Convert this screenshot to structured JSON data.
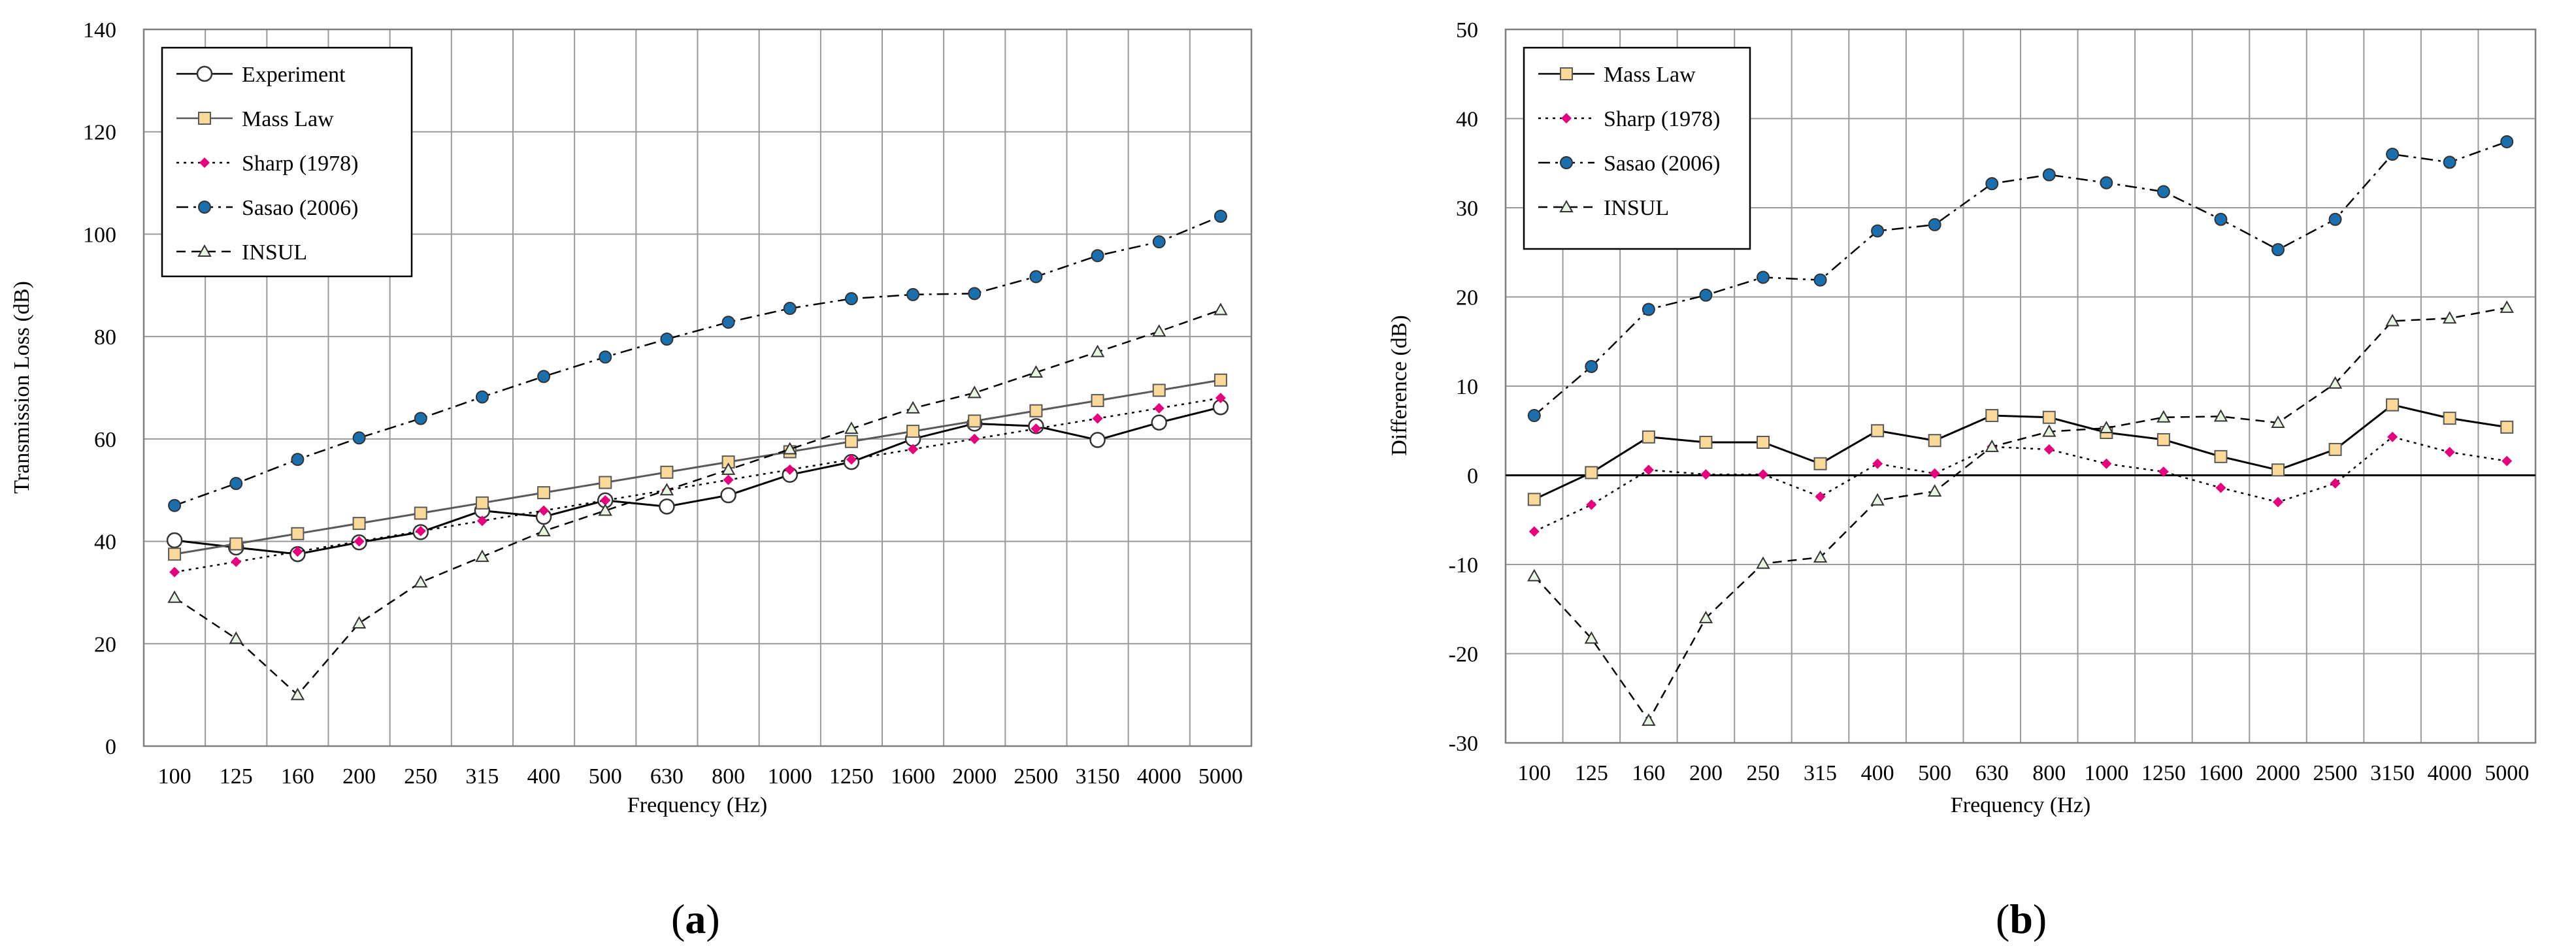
{
  "chart_data": [
    {
      "type": "line",
      "panel": "a",
      "categories": [
        "100",
        "125",
        "160",
        "200",
        "250",
        "315",
        "400",
        "500",
        "630",
        "800",
        "1000",
        "1250",
        "1600",
        "2000",
        "2500",
        "3150",
        "4000",
        "5000"
      ],
      "xlabel": "Frequency (Hz)",
      "ylabel": "Transmission Loss (dB)",
      "ylim": [
        0,
        140
      ],
      "yticks": [
        0,
        20,
        40,
        60,
        80,
        100,
        120,
        140
      ],
      "grid": true,
      "legend_position": "top-left",
      "series": [
        {
          "name": "Experiment",
          "marker": "circle-open",
          "dash": "solid",
          "color": "#000000",
          "fill": "#ffffff",
          "values": [
            40.2,
            38.8,
            37.5,
            39.8,
            41.8,
            46.0,
            44.8,
            48.0,
            46.8,
            49.0,
            53.0,
            55.5,
            60.0,
            63.0,
            62.5,
            59.8,
            63.2,
            66.2
          ]
        },
        {
          "name": "Mass Law",
          "marker": "square",
          "dash": "solid",
          "color": "#595959",
          "fill": "#fbd998",
          "values": [
            37.5,
            39.5,
            41.5,
            43.5,
            45.5,
            47.5,
            49.5,
            51.5,
            53.5,
            55.5,
            57.5,
            59.5,
            61.5,
            63.5,
            65.5,
            67.5,
            69.5,
            71.5
          ]
        },
        {
          "name": "Sharp (1978)",
          "marker": "diamond",
          "dash": "dot",
          "color": "#000000",
          "fill": "#e6007e",
          "values": [
            34.0,
            36.0,
            38.0,
            40.0,
            42.0,
            44.0,
            46.0,
            48.0,
            50.0,
            52.0,
            54.0,
            56.0,
            58.0,
            60.0,
            62.0,
            64.0,
            66.0,
            68.0
          ]
        },
        {
          "name": "Sasao (2006)",
          "marker": "circle",
          "dash": "dashdot",
          "color": "#000000",
          "fill": "#1a6faf",
          "values": [
            47.0,
            51.3,
            56.0,
            60.2,
            64.0,
            68.2,
            72.2,
            76.0,
            79.5,
            82.8,
            85.5,
            87.4,
            88.2,
            88.4,
            91.7,
            95.8,
            98.5,
            103.5
          ]
        },
        {
          "name": "INSUL",
          "marker": "triangle-open",
          "dash": "dash",
          "color": "#000000",
          "fill": "#e8f5e0",
          "values": [
            29.0,
            21.0,
            10.0,
            24.0,
            32.0,
            37.0,
            42.0,
            46.0,
            50.0,
            54.0,
            58.0,
            62.0,
            66.0,
            69.0,
            73.0,
            77.0,
            81.0,
            85.2
          ]
        }
      ],
      "panel_label_open": "(",
      "panel_label_letter": "a",
      "panel_label_close": ")"
    },
    {
      "type": "line",
      "panel": "b",
      "categories": [
        "100",
        "125",
        "160",
        "200",
        "250",
        "315",
        "400",
        "500",
        "630",
        "800",
        "1000",
        "1250",
        "1600",
        "2000",
        "2500",
        "3150",
        "4000",
        "5000"
      ],
      "xlabel": "Frequency (Hz)",
      "ylabel": "Difference (dB)",
      "ylim": [
        -30,
        50
      ],
      "yticks": [
        -30,
        -20,
        -10,
        0,
        10,
        20,
        30,
        40,
        50
      ],
      "grid": true,
      "legend_position": "top-left",
      "series": [
        {
          "name": "Mass Law",
          "marker": "square",
          "dash": "solid",
          "color": "#000000",
          "fill": "#fbd998",
          "values": [
            -2.7,
            0.3,
            4.3,
            3.7,
            3.7,
            1.3,
            5.0,
            3.9,
            6.7,
            6.5,
            4.8,
            4.0,
            2.1,
            0.6,
            2.9,
            7.9,
            6.4,
            5.4
          ]
        },
        {
          "name": "Sharp (1978)",
          "marker": "diamond",
          "dash": "dot",
          "color": "#000000",
          "fill": "#e6007e",
          "values": [
            -6.3,
            -3.3,
            0.6,
            0.1,
            0.1,
            -2.4,
            1.3,
            0.2,
            3.2,
            2.9,
            1.3,
            0.4,
            -1.4,
            -3.0,
            -0.9,
            4.3,
            2.6,
            1.6
          ]
        },
        {
          "name": "Sasao (2006)",
          "marker": "circle",
          "dash": "dashdot",
          "color": "#000000",
          "fill": "#1a6faf",
          "values": [
            6.7,
            12.2,
            18.6,
            20.2,
            22.2,
            21.9,
            27.4,
            28.1,
            32.7,
            33.7,
            32.8,
            31.8,
            28.7,
            25.3,
            28.7,
            36.0,
            35.1,
            37.4
          ]
        },
        {
          "name": "INSUL",
          "marker": "triangle-open",
          "dash": "dash",
          "color": "#000000",
          "fill": "#e8f5e0",
          "values": [
            -11.3,
            -18.3,
            -27.5,
            -16.0,
            -9.9,
            -9.2,
            -2.8,
            -1.8,
            3.2,
            4.9,
            5.3,
            6.5,
            6.6,
            5.9,
            10.3,
            17.3,
            17.6,
            18.8
          ]
        }
      ],
      "panel_label_open": "(",
      "panel_label_letter": "b",
      "panel_label_close": ")"
    }
  ]
}
